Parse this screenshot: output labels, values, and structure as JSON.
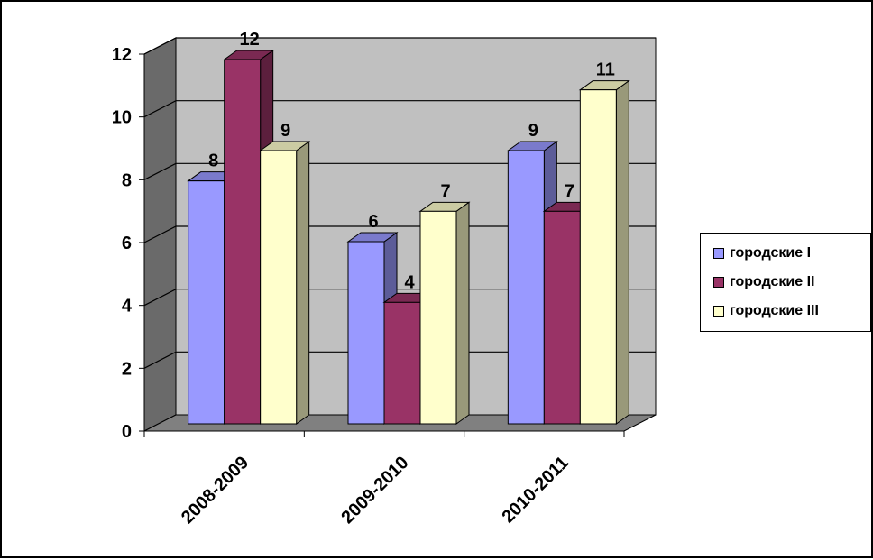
{
  "chart_data": {
    "type": "bar",
    "style": "3d-clustered-column",
    "categories": [
      "2008-2009",
      "2009-2010",
      "2010-2011"
    ],
    "series": [
      {
        "name": "городские I",
        "values": [
          8,
          6,
          9
        ],
        "color": "#9999FF"
      },
      {
        "name": "городские II",
        "values": [
          12,
          4,
          7
        ],
        "color": "#993366"
      },
      {
        "name": "городские III",
        "values": [
          9,
          7,
          11
        ],
        "color": "#FFFFCC"
      }
    ],
    "ylim": [
      0,
      12
    ],
    "yticks": [
      0,
      2,
      4,
      6,
      8,
      10,
      12
    ],
    "grid": true,
    "legend": "right",
    "wall_color": "#C0C0C0",
    "floor_color": "#808080"
  }
}
